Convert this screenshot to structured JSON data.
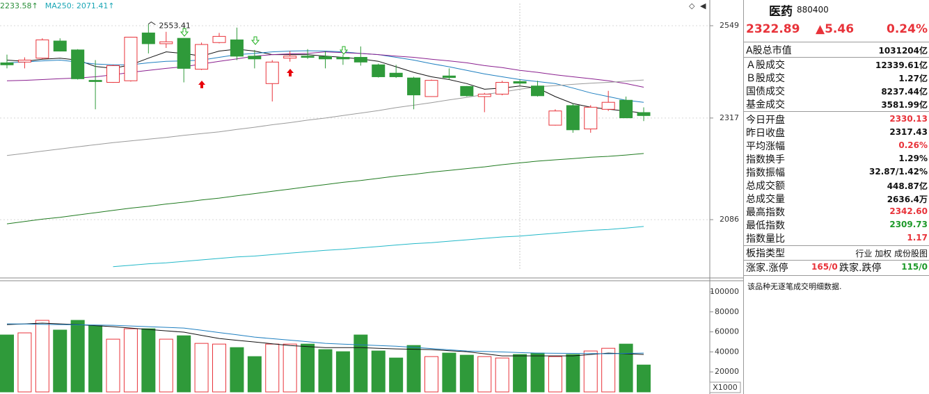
{
  "chart_data": {
    "type": "candlestick",
    "legend": [
      {
        "text": "2233.58↑",
        "color": "#2a8f3a"
      },
      {
        "text": "MA250: 2071.41↑",
        "color": "#1aa6b5"
      }
    ],
    "open": [
      2453,
      2455,
      2465,
      2509,
      2486,
      2409,
      2404,
      2408,
      2530,
      2502,
      2516,
      2437,
      2505,
      2512,
      2470,
      2401,
      2465,
      2470,
      2469,
      2467,
      2467,
      2448,
      2427,
      2415,
      2369,
      2420,
      2394,
      2369,
      2375,
      2406,
      2395,
      2300,
      2347,
      2291,
      2338,
      2360,
      2330.13
    ],
    "high": [
      2474,
      2467,
      2516,
      2516,
      2488,
      2460,
      2448,
      2520,
      2553.41,
      2533,
      2517,
      2505,
      2530,
      2544,
      2486,
      2460,
      2483,
      2488,
      2483,
      2474,
      2495,
      2451,
      2448,
      2418,
      2411,
      2439,
      2395,
      2378,
      2408,
      2411,
      2408,
      2338,
      2352,
      2348,
      2383,
      2369,
      2342.6
    ],
    "low": [
      2439,
      2439,
      2463,
      2482,
      2411,
      2338,
      2403,
      2406,
      2477,
      2491,
      2404,
      2435,
      2503,
      2460,
      2439,
      2357,
      2456,
      2463,
      2439,
      2448,
      2446,
      2416,
      2415,
      2338,
      2368,
      2411,
      2369,
      2331,
      2372,
      2397,
      2369,
      2299,
      2282,
      2282,
      2334,
      2317,
      2309.73
    ],
    "close": [
      2448,
      2460,
      2512,
      2483,
      2413,
      2406,
      2446,
      2519,
      2502,
      2507,
      2439,
      2500,
      2521,
      2470,
      2463,
      2455,
      2470,
      2467,
      2463,
      2463,
      2455,
      2418,
      2418,
      2373,
      2409,
      2416,
      2371,
      2375,
      2404,
      2402,
      2371,
      2334,
      2289,
      2343,
      2355,
      2317.43,
      2322.89
    ],
    "up_color": "#e8333a",
    "down_color": "#2f9a3a",
    "ylim": [
      1964,
      2612
    ],
    "yticks": [
      2086,
      2317,
      2549
    ],
    "log_scale": true,
    "lines": [
      {
        "color": "#111111",
        "values": [
          2460,
          2457,
          2462,
          2465,
          2460,
          2444,
          2439,
          2448,
          2465,
          2481,
          2477,
          2470,
          2483,
          2488,
          2483,
          2474,
          2474,
          2474,
          2470,
          2467,
          2463,
          2457,
          2443,
          2429,
          2418,
          2411,
          2401,
          2387,
          2390,
          2395,
          2390,
          2369,
          2352,
          2343,
          2338,
          2334,
          2329
        ]
      },
      {
        "color": "#1e7fc0",
        "values": [
          2453,
          2455,
          2458,
          2460,
          2455,
          2450,
          2448,
          2448,
          2453,
          2457,
          2458,
          2460,
          2467,
          2474,
          2477,
          2481,
          2483,
          2484,
          2483,
          2481,
          2477,
          2474,
          2467,
          2460,
          2451,
          2443,
          2434,
          2425,
          2418,
          2411,
          2406,
          2401,
          2390,
          2378,
          2369,
          2360,
          2355
        ]
      },
      {
        "color": "#8a1f8f",
        "values": [
          2408,
          2409,
          2411,
          2413,
          2415,
          2418,
          2423,
          2429,
          2434,
          2439,
          2443,
          2450,
          2457,
          2463,
          2470,
          2474,
          2476,
          2477,
          2481,
          2479,
          2477,
          2474,
          2470,
          2467,
          2462,
          2458,
          2453,
          2446,
          2441,
          2434,
          2429,
          2423,
          2418,
          2413,
          2408,
          2401,
          2392
        ]
      },
      {
        "color": "#9a9a9a",
        "values": [
          2229,
          2234,
          2239,
          2244,
          2249,
          2254,
          2259,
          2263,
          2267,
          2271,
          2276,
          2280,
          2284,
          2290,
          2295,
          2301,
          2306,
          2312,
          2317,
          2323,
          2329,
          2335,
          2342,
          2348,
          2354,
          2361,
          2367,
          2374,
          2380,
          2387,
          2393,
          2396,
          2399,
          2402,
          2404,
          2407,
          2410
        ]
      },
      {
        "color": "#1f7a1f",
        "values": [
          2077,
          2082,
          2087,
          2091,
          2096,
          2101,
          2106,
          2111,
          2115,
          2120,
          2124,
          2129,
          2133,
          2138,
          2143,
          2148,
          2153,
          2158,
          2163,
          2168,
          2172,
          2177,
          2182,
          2186,
          2191,
          2195,
          2199,
          2203,
          2208,
          2212,
          2216,
          2219,
          2222,
          2225,
          2227,
          2230,
          2233.58
        ]
      },
      {
        "color": "#22b8c8",
        "values": [
          null,
          null,
          null,
          null,
          null,
          null,
          1987,
          1990,
          1993,
          1995,
          1998,
          2001,
          2004,
          2007,
          2009,
          2012,
          2015,
          2018,
          2021,
          2023,
          2026,
          2029,
          2032,
          2035,
          2037,
          2040,
          2043,
          2046,
          2049,
          2051,
          2054,
          2057,
          2060,
          2063,
          2065,
          2068,
          2071.41
        ]
      }
    ],
    "volume": {
      "values": [
        56900,
        59000,
        71500,
        61800,
        71500,
        66000,
        52700,
        63100,
        63100,
        52700,
        56100,
        48500,
        47800,
        44300,
        35300,
        47800,
        47800,
        47800,
        42300,
        40200,
        56900,
        40900,
        33900,
        46400,
        35300,
        38800,
        36700,
        35300,
        33900,
        37400,
        38800,
        35300,
        37400,
        40900,
        43600,
        47800,
        26900
      ],
      "lines": [
        {
          "color": "#111111",
          "values": [
            67300,
            68000,
            68700,
            68000,
            67300,
            66200,
            65200,
            63800,
            62400,
            61000,
            59700,
            56500,
            53400,
            51600,
            49900,
            48100,
            46400,
            45300,
            44300,
            44300,
            44300,
            43600,
            43000,
            42600,
            42300,
            41200,
            40200,
            38100,
            36000,
            36000,
            36000,
            36000,
            36000,
            37400,
            38800,
            38100,
            37400
          ]
        },
        {
          "color": "#1e7fc0",
          "values": [
            68000,
            67800,
            67500,
            67300,
            67100,
            66800,
            66600,
            65900,
            65200,
            64500,
            63800,
            61600,
            59300,
            57100,
            54800,
            53200,
            51700,
            50100,
            48500,
            47800,
            47100,
            46400,
            45700,
            44500,
            43300,
            42100,
            40900,
            40400,
            39900,
            39300,
            38800,
            38600,
            38500,
            38300,
            38100,
            38500,
            38800
          ]
        }
      ],
      "ylim": [
        0,
        109000
      ],
      "yticks": [
        20000,
        40000,
        60000,
        80000,
        100000
      ],
      "unit": "X1000"
    }
  },
  "info_panel": {
    "name": "医药",
    "code": "880400",
    "price": "2322.89",
    "change": "▲5.46",
    "change_pct": "0.24%",
    "rows": [
      [
        "A股总市值",
        "1031204亿"
      ],
      [
        "Ａ股成交",
        "12339.61亿"
      ],
      [
        "Ｂ股成交",
        "1.27亿"
      ],
      [
        "国债成交",
        "8237.44亿"
      ],
      [
        "基金成交",
        "3581.99亿"
      ],
      [
        "今日开盘",
        "2330.13"
      ],
      [
        "昨日收盘",
        "2317.43"
      ],
      [
        "平均涨幅",
        "0.26%"
      ],
      [
        "指数换手",
        "1.29%"
      ],
      [
        "指数振幅",
        "32.87/1.42%"
      ],
      [
        "总成交额",
        "448.87亿"
      ],
      [
        "总成交量",
        "2636.4万"
      ],
      [
        "最高指数",
        "2342.60"
      ],
      [
        "最低指数",
        "2309.73"
      ],
      [
        "指数量比",
        "1.17"
      ],
      [
        "板指类型",
        "行业 加权 成份股图"
      ]
    ],
    "limit_row": [
      "涨家.涨停",
      "165/0",
      "跌家.跌停",
      "115/0"
    ],
    "note": "该品种无逐笔成交明细数据."
  }
}
